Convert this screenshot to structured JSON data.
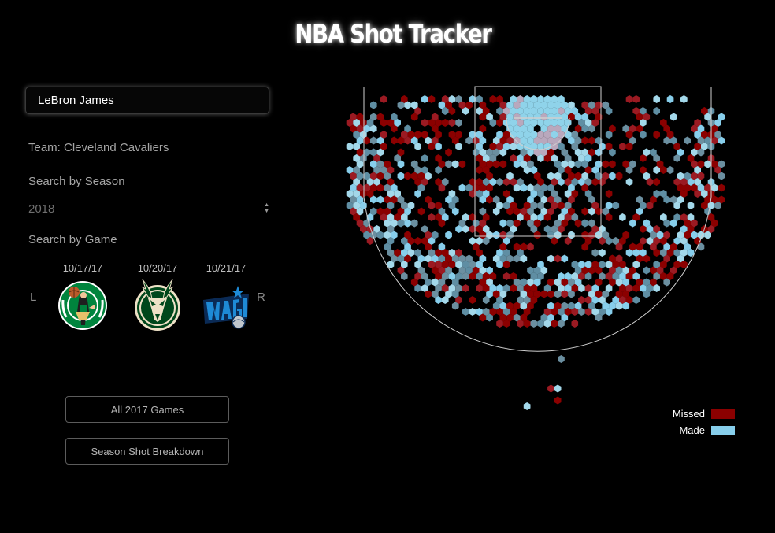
{
  "app": {
    "title": "NBA Shot Tracker"
  },
  "player": {
    "name": "LeBron James",
    "team": "Team: Cleveland Cavaliers"
  },
  "filters": {
    "season_label": "Search by Season",
    "season_value": "2018",
    "game_label": "Search by Game"
  },
  "games_nav": {
    "prev": "L",
    "next": "R",
    "games": [
      {
        "date": "10/17/17",
        "logo": "boston-celtics-logo"
      },
      {
        "date": "10/20/17",
        "logo": "milwaukee-bucks-logo"
      },
      {
        "date": "10/21/17",
        "logo": "orlando-magic-logo"
      }
    ]
  },
  "buttons": {
    "all_games": "All 2017 Games",
    "season_breakdown": "Season Shot Breakdown"
  },
  "legend": [
    {
      "label": "Missed",
      "color": "#8b0000"
    },
    {
      "label": "Made",
      "color": "#87ceeb"
    }
  ],
  "colors": {
    "missed": "#8b0000",
    "made": "#87ceeb",
    "mixed": "#5f8ea3",
    "court_lines": "#cfcfcf"
  }
}
